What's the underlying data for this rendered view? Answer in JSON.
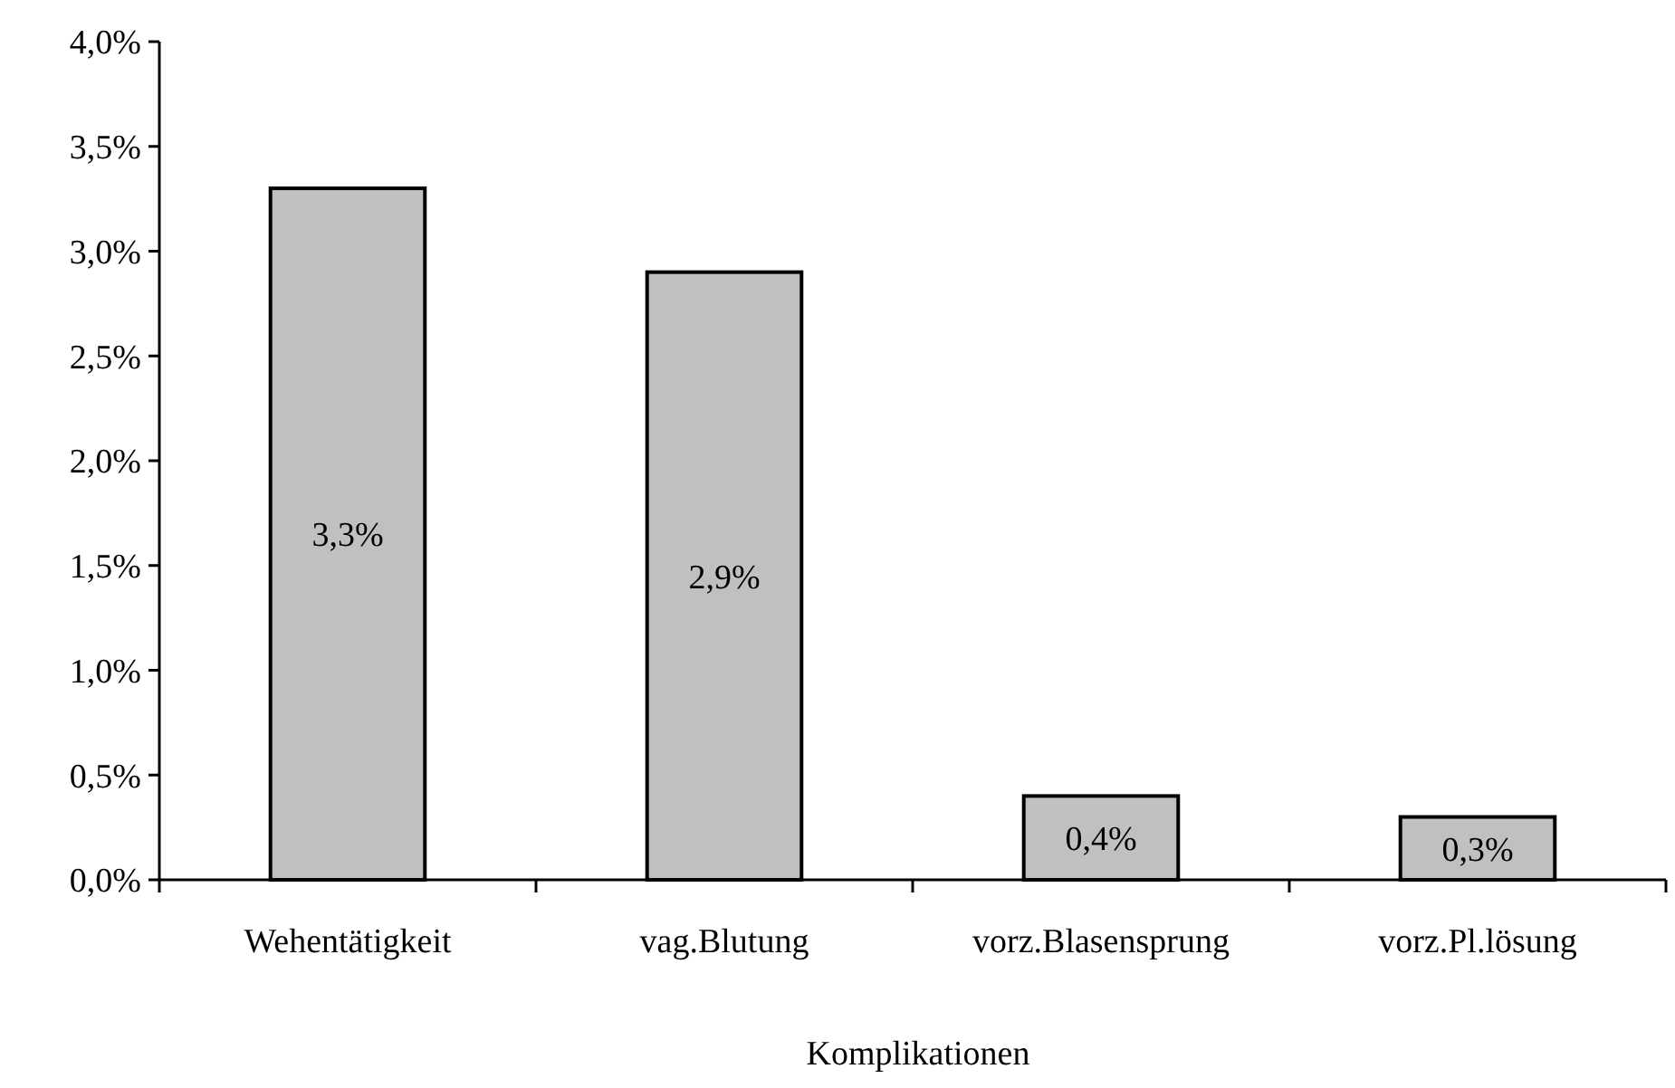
{
  "chart_data": {
    "type": "bar",
    "xlabel": "Komplikationen",
    "categories": [
      "Wehentätigkeit",
      "vag.Blutung",
      "vorz.Blasensprung",
      "vorz.Pl.lösung"
    ],
    "values": [
      3.3,
      2.9,
      0.4,
      0.3
    ],
    "value_labels": [
      "3,3%",
      "2,9%",
      "0,4%",
      "0,3%"
    ],
    "color": "#c0c0c0",
    "ylim": [
      0,
      4
    ],
    "yticks": [
      {
        "value": 0,
        "label": "0,0%"
      },
      {
        "value": 0.5,
        "label": "0,5%"
      },
      {
        "value": 1,
        "label": "1,0%"
      },
      {
        "value": 1.5,
        "label": "1,5%"
      },
      {
        "value": 2,
        "label": "2,0%"
      },
      {
        "value": 2.5,
        "label": "2,5%"
      },
      {
        "value": 3,
        "label": "3,0%"
      },
      {
        "value": 3.5,
        "label": "3,5%"
      },
      {
        "value": 4,
        "label": "4,0%"
      }
    ],
    "grid": false
  }
}
